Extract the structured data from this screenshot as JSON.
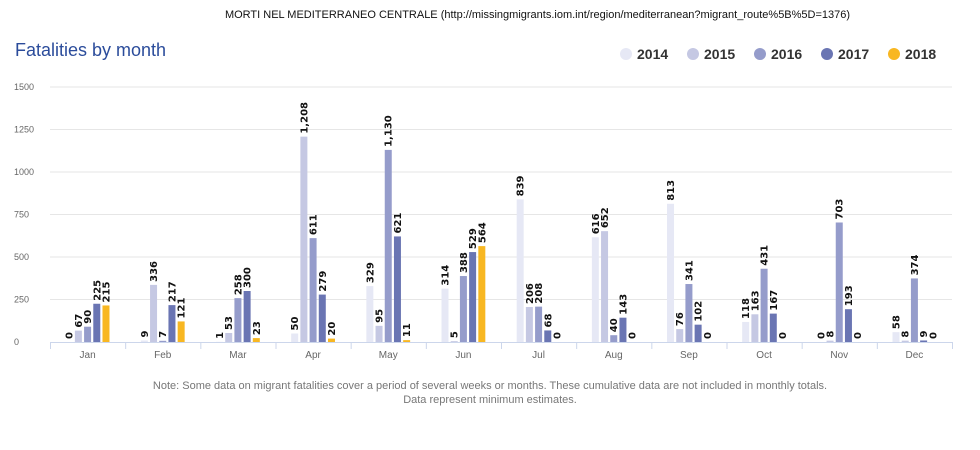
{
  "header": {
    "title": "MORTI NEL MEDITERRANEO CENTRALE  (http://missingmigrants.iom.int/region/mediterranean?migrant_route%5B%5D=1376)"
  },
  "chart_data": {
    "type": "bar",
    "title": "Fatalities by month",
    "xlabel": "",
    "ylabel": "",
    "ylim": [
      0,
      1500
    ],
    "yticks": [
      "0",
      "250",
      "500",
      "750",
      "1000",
      "1250",
      "1500"
    ],
    "grid": true,
    "legend_position": "top-right",
    "categories": [
      "Jan",
      "Feb",
      "Mar",
      "Apr",
      "May",
      "Jun",
      "Jul",
      "Aug",
      "Sep",
      "Oct",
      "Nov",
      "Dec"
    ],
    "series": [
      {
        "name": "2014",
        "color": "#e6e8f5",
        "values": [
          0,
          9,
          1,
          50,
          329,
          314,
          839,
          616,
          813,
          118,
          0,
          58
        ]
      },
      {
        "name": "2015",
        "color": "#c5c8e3",
        "values": [
          67,
          336,
          53,
          1208,
          95,
          5,
          206,
          652,
          76,
          163,
          8,
          8
        ]
      },
      {
        "name": "2016",
        "color": "#959ccb",
        "values": [
          90,
          7,
          258,
          611,
          1130,
          388,
          208,
          40,
          341,
          431,
          703,
          374
        ]
      },
      {
        "name": "2017",
        "color": "#6a75b3",
        "values": [
          225,
          217,
          300,
          279,
          621,
          529,
          68,
          143,
          102,
          167,
          193,
          9
        ]
      },
      {
        "name": "2018",
        "color": "#f8b722",
        "values": [
          215,
          121,
          23,
          20,
          11,
          564,
          0,
          0,
          0,
          0,
          0,
          0
        ]
      }
    ]
  },
  "note": {
    "line1": "Note: Some data on migrant fatalities cover a period of several weeks or months. These cumulative data are not included in monthly totals.",
    "line2": "Data represent minimum estimates."
  }
}
